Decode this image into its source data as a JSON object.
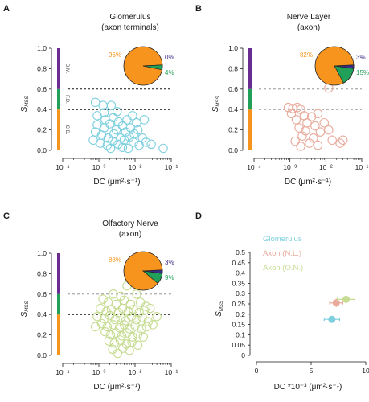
{
  "figure": {
    "panel_letters": [
      "A",
      "B",
      "C",
      "D"
    ]
  },
  "colors": {
    "glomerulus": "#7fd0df",
    "axon_nl": "#e8ab9c",
    "axon_on": "#c6dc92",
    "bar_purple": "#6a2c91",
    "bar_green": "#21a05a",
    "bar_orange": "#f7941d",
    "pie_orange": "#f7941d",
    "pie_green": "#21a05a",
    "pie_purple": "#3b2a86"
  },
  "chart_data": [
    {
      "type": "scatter",
      "panel": "A",
      "title": "Glomerulus",
      "subtitle": "(axon terminals)",
      "xlabel": "DC (μm²·s⁻¹)",
      "ylabel": "S",
      "ylabel_sub": "MSS",
      "xscale": "log",
      "xlim": [
        0.0001,
        0.1
      ],
      "ylim": [
        0,
        1.0
      ],
      "xticks": [
        "10⁻⁴",
        "10⁻³",
        "10⁻²",
        "10⁻¹"
      ],
      "yticks": [
        "0.0",
        "0.2",
        "0.4",
        "0.6",
        "0.8",
        "1.0"
      ],
      "dashed_lines": [
        0.4,
        0.6
      ],
      "dashed_style": [
        "dense",
        "dense"
      ],
      "mode_bar": [
        {
          "label": "C.D.",
          "from": 0.0,
          "to": 0.4
        },
        {
          "label": "F.D.",
          "from": 0.4,
          "to": 0.6
        },
        {
          "label": "D.M.",
          "from": 0.6,
          "to": 1.0
        }
      ],
      "pie": {
        "slices": [
          {
            "label": "96%",
            "value": 96
          },
          {
            "label": "4%",
            "value": 4
          },
          {
            "label": "0%",
            "value": 0
          }
        ]
      },
      "points": [
        {
          "x": 0.0008,
          "y": 0.47
        },
        {
          "x": 0.0013,
          "y": 0.44
        },
        {
          "x": 0.0022,
          "y": 0.44
        },
        {
          "x": 0.0009,
          "y": 0.34
        },
        {
          "x": 0.0015,
          "y": 0.3
        },
        {
          "x": 0.0025,
          "y": 0.32
        },
        {
          "x": 0.0035,
          "y": 0.28
        },
        {
          "x": 0.0009,
          "y": 0.25
        },
        {
          "x": 0.0014,
          "y": 0.22
        },
        {
          "x": 0.002,
          "y": 0.26
        },
        {
          "x": 0.003,
          "y": 0.2
        },
        {
          "x": 0.0045,
          "y": 0.24
        },
        {
          "x": 0.006,
          "y": 0.3
        },
        {
          "x": 0.0008,
          "y": 0.18
        },
        {
          "x": 0.0012,
          "y": 0.15
        },
        {
          "x": 0.0018,
          "y": 0.12
        },
        {
          "x": 0.0026,
          "y": 0.16
        },
        {
          "x": 0.004,
          "y": 0.12
        },
        {
          "x": 0.0055,
          "y": 0.18
        },
        {
          "x": 0.0075,
          "y": 0.22
        },
        {
          "x": 0.0007,
          "y": 0.1
        },
        {
          "x": 0.0011,
          "y": 0.07
        },
        {
          "x": 0.0017,
          "y": 0.05
        },
        {
          "x": 0.0024,
          "y": 0.09
        },
        {
          "x": 0.0034,
          "y": 0.06
        },
        {
          "x": 0.005,
          "y": 0.1
        },
        {
          "x": 0.007,
          "y": 0.13
        },
        {
          "x": 0.0095,
          "y": 0.16
        },
        {
          "x": 0.012,
          "y": 0.2
        },
        {
          "x": 0.016,
          "y": 0.12
        },
        {
          "x": 0.009,
          "y": 0.08
        },
        {
          "x": 0.013,
          "y": 0.05
        },
        {
          "x": 0.02,
          "y": 0.08
        },
        {
          "x": 0.0045,
          "y": 0.03
        },
        {
          "x": 0.0065,
          "y": 0.02
        },
        {
          "x": 0.0021,
          "y": 0.02
        },
        {
          "x": 0.0085,
          "y": 0.34
        },
        {
          "x": 0.011,
          "y": 0.27
        },
        {
          "x": 0.018,
          "y": 0.3
        },
        {
          "x": 0.028,
          "y": 0.06
        },
        {
          "x": 0.06,
          "y": 0.02
        },
        {
          "x": 0.0014,
          "y": 0.37
        },
        {
          "x": 0.0032,
          "y": 0.38
        }
      ]
    },
    {
      "type": "scatter",
      "panel": "B",
      "title": "Nerve Layer",
      "subtitle": "(axon)",
      "xlabel": "DC (μm²·s⁻¹)",
      "ylabel": "S",
      "ylabel_sub": "MSS",
      "xscale": "log",
      "xlim": [
        0.0001,
        0.1
      ],
      "ylim": [
        0,
        1.0
      ],
      "xticks": [
        "10⁻⁴",
        "10⁻³",
        "10⁻²",
        "10⁻¹"
      ],
      "yticks": [
        "0.0",
        "0.2",
        "0.4",
        "0.6",
        "0.8",
        "1.0"
      ],
      "dashed_lines": [
        0.4,
        0.6
      ],
      "dashed_style": [
        "light",
        "light"
      ],
      "mode_bar": [
        {
          "label": "",
          "from": 0.0,
          "to": 0.4
        },
        {
          "label": "",
          "from": 0.4,
          "to": 0.6
        },
        {
          "label": "",
          "from": 0.6,
          "to": 1.0
        }
      ],
      "pie": {
        "slices": [
          {
            "label": "82%",
            "value": 82
          },
          {
            "label": "15%",
            "value": 15
          },
          {
            "label": "3%",
            "value": 3
          }
        ]
      },
      "points": [
        {
          "x": 0.012,
          "y": 0.61
        },
        {
          "x": 0.0009,
          "y": 0.42
        },
        {
          "x": 0.0012,
          "y": 0.41
        },
        {
          "x": 0.0016,
          "y": 0.42
        },
        {
          "x": 0.002,
          "y": 0.4
        },
        {
          "x": 0.0011,
          "y": 0.36
        },
        {
          "x": 0.0025,
          "y": 0.34
        },
        {
          "x": 0.004,
          "y": 0.33
        },
        {
          "x": 0.006,
          "y": 0.36
        },
        {
          "x": 0.0015,
          "y": 0.3
        },
        {
          "x": 0.003,
          "y": 0.27
        },
        {
          "x": 0.005,
          "y": 0.24
        },
        {
          "x": 0.009,
          "y": 0.27
        },
        {
          "x": 0.0018,
          "y": 0.22
        },
        {
          "x": 0.0027,
          "y": 0.19
        },
        {
          "x": 0.007,
          "y": 0.18
        },
        {
          "x": 0.012,
          "y": 0.2
        },
        {
          "x": 0.0022,
          "y": 0.14
        },
        {
          "x": 0.0045,
          "y": 0.12
        },
        {
          "x": 0.0014,
          "y": 0.09
        },
        {
          "x": 0.0035,
          "y": 0.07
        },
        {
          "x": 0.015,
          "y": 0.1
        },
        {
          "x": 0.025,
          "y": 0.07
        },
        {
          "x": 0.03,
          "y": 0.1
        },
        {
          "x": 0.002,
          "y": 0.04
        },
        {
          "x": 0.006,
          "y": 0.05
        }
      ]
    },
    {
      "type": "scatter",
      "panel": "C",
      "title": "Olfactory Nerve",
      "subtitle": "(axon)",
      "xlabel": "DC (μm²·s⁻¹)",
      "ylabel": "S",
      "ylabel_sub": "MSS",
      "xscale": "log",
      "xlim": [
        0.0001,
        0.1
      ],
      "ylim": [
        0,
        1.0
      ],
      "xticks": [
        "10⁻⁴",
        "10⁻³",
        "10⁻²",
        "10⁻¹"
      ],
      "yticks": [
        "0.0",
        "0.2",
        "0.4",
        "0.6",
        "0.8",
        "1.0"
      ],
      "dashed_lines": [
        0.4,
        0.6
      ],
      "dashed_style": [
        "dense",
        "light"
      ],
      "mode_bar": [
        {
          "label": "",
          "from": 0.0,
          "to": 0.4
        },
        {
          "label": "",
          "from": 0.4,
          "to": 0.6
        },
        {
          "label": "",
          "from": 0.6,
          "to": 1.0
        }
      ],
      "pie": {
        "slices": [
          {
            "label": "88%",
            "value": 88
          },
          {
            "label": "9%",
            "value": 9
          },
          {
            "label": "3%",
            "value": 3
          }
        ]
      },
      "points": [
        {
          "x": 0.009,
          "y": 0.72
        },
        {
          "x": 0.006,
          "y": 0.68
        },
        {
          "x": 0.0025,
          "y": 0.6
        },
        {
          "x": 0.004,
          "y": 0.58
        },
        {
          "x": 0.011,
          "y": 0.6
        },
        {
          "x": 0.0013,
          "y": 0.55
        },
        {
          "x": 0.0018,
          "y": 0.52
        },
        {
          "x": 0.003,
          "y": 0.5
        },
        {
          "x": 0.005,
          "y": 0.54
        },
        {
          "x": 0.0075,
          "y": 0.5
        },
        {
          "x": 0.014,
          "y": 0.52
        },
        {
          "x": 0.02,
          "y": 0.48
        },
        {
          "x": 0.0011,
          "y": 0.46
        },
        {
          "x": 0.0016,
          "y": 0.43
        },
        {
          "x": 0.0022,
          "y": 0.45
        },
        {
          "x": 0.0035,
          "y": 0.42
        },
        {
          "x": 0.0045,
          "y": 0.46
        },
        {
          "x": 0.0065,
          "y": 0.43
        },
        {
          "x": 0.009,
          "y": 0.45
        },
        {
          "x": 0.013,
          "y": 0.42
        },
        {
          "x": 0.018,
          "y": 0.44
        },
        {
          "x": 0.026,
          "y": 0.46
        },
        {
          "x": 0.0009,
          "y": 0.38
        },
        {
          "x": 0.0014,
          "y": 0.36
        },
        {
          "x": 0.002,
          "y": 0.39
        },
        {
          "x": 0.0028,
          "y": 0.35
        },
        {
          "x": 0.004,
          "y": 0.37
        },
        {
          "x": 0.0055,
          "y": 0.34
        },
        {
          "x": 0.008,
          "y": 0.38
        },
        {
          "x": 0.011,
          "y": 0.35
        },
        {
          "x": 0.016,
          "y": 0.37
        },
        {
          "x": 0.023,
          "y": 0.33
        },
        {
          "x": 0.0012,
          "y": 0.31
        },
        {
          "x": 0.0017,
          "y": 0.28
        },
        {
          "x": 0.0025,
          "y": 0.3
        },
        {
          "x": 0.0037,
          "y": 0.27
        },
        {
          "x": 0.005,
          "y": 0.3
        },
        {
          "x": 0.007,
          "y": 0.26
        },
        {
          "x": 0.01,
          "y": 0.29
        },
        {
          "x": 0.015,
          "y": 0.26
        },
        {
          "x": 0.021,
          "y": 0.28
        },
        {
          "x": 0.031,
          "y": 0.3
        },
        {
          "x": 0.0015,
          "y": 0.23
        },
        {
          "x": 0.0021,
          "y": 0.2
        },
        {
          "x": 0.003,
          "y": 0.22
        },
        {
          "x": 0.0043,
          "y": 0.19
        },
        {
          "x": 0.006,
          "y": 0.22
        },
        {
          "x": 0.0085,
          "y": 0.18
        },
        {
          "x": 0.012,
          "y": 0.21
        },
        {
          "x": 0.017,
          "y": 0.18
        },
        {
          "x": 0.0019,
          "y": 0.14
        },
        {
          "x": 0.0027,
          "y": 0.12
        },
        {
          "x": 0.0039,
          "y": 0.15
        },
        {
          "x": 0.0058,
          "y": 0.11
        },
        {
          "x": 0.0082,
          "y": 0.13
        },
        {
          "x": 0.012,
          "y": 0.1
        },
        {
          "x": 0.0024,
          "y": 0.06
        },
        {
          "x": 0.0046,
          "y": 0.07
        },
        {
          "x": 0.007,
          "y": 0.05
        },
        {
          "x": 0.0033,
          "y": 0.02
        },
        {
          "x": 0.0008,
          "y": 0.28
        },
        {
          "x": 0.04,
          "y": 0.38
        }
      ]
    },
    {
      "type": "scatter",
      "panel": "D",
      "title": "",
      "xlabel": "DC *10⁻³ (μm²·s⁻¹)",
      "ylabel": "S",
      "ylabel_sub": "MSS",
      "xlim": [
        0,
        10
      ],
      "ylim": [
        0,
        0.5
      ],
      "xticks": [
        "0",
        "5",
        "10"
      ],
      "yticks": [
        "0",
        "0.05",
        "0.1",
        "0.15",
        "0.2",
        "0.25",
        "0.3",
        "0.35",
        "0.4",
        "0.45",
        "0.5"
      ],
      "legend": [
        "Glomerulus",
        "Axon (N.L.)",
        "Axon (O.N.)"
      ],
      "legend_position": "top-left",
      "series": [
        {
          "name": "Glomerulus",
          "x": 6.9,
          "y": 0.175,
          "xerr": 0.7,
          "yerr": 0.006
        },
        {
          "name": "Axon (N.L.)",
          "x": 7.3,
          "y": 0.255,
          "xerr": 0.6,
          "yerr": 0.02
        },
        {
          "name": "Axon (O.N.)",
          "x": 8.2,
          "y": 0.272,
          "xerr": 0.8,
          "yerr": 0.008
        }
      ]
    }
  ]
}
